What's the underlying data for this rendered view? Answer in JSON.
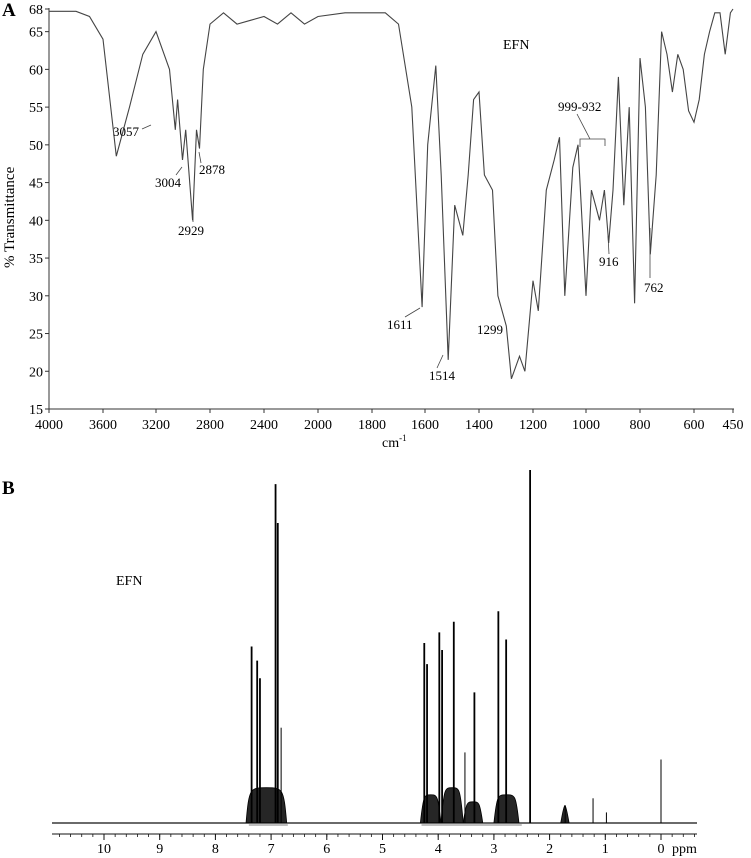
{
  "panels": {
    "a_label": "A",
    "b_label": "B"
  },
  "chart_data": [
    {
      "type": "line",
      "panel": "A",
      "title": "EFN",
      "xlabel": "cm-1",
      "ylabel": "% Transmittance",
      "xlim": [
        4000,
        450
      ],
      "ylim": [
        15,
        68
      ],
      "grid": false,
      "x_ticks": [
        4000,
        3600,
        3200,
        2800,
        2400,
        2000,
        1800,
        1600,
        1400,
        1200,
        1000,
        800,
        600,
        450
      ],
      "y_ticks": [
        15,
        20,
        25,
        30,
        35,
        40,
        45,
        50,
        55,
        60,
        65,
        68
      ],
      "annotations": [
        {
          "label": "3057",
          "x": 3057,
          "y": 52
        },
        {
          "label": "3004",
          "x": 3004,
          "y": 48
        },
        {
          "label": "2929",
          "x": 2929,
          "y": 40
        },
        {
          "label": "2878",
          "x": 2878,
          "y": 49.5
        },
        {
          "label": "1611",
          "x": 1611,
          "y": 28.5
        },
        {
          "label": "1514",
          "x": 1514,
          "y": 21.5
        },
        {
          "label": "1299",
          "x": 1299,
          "y": 26
        },
        {
          "label": "999-932",
          "x": 965,
          "y": 51
        },
        {
          "label": "916",
          "x": 916,
          "y": 37
        },
        {
          "label": "762",
          "x": 762,
          "y": 35.5
        }
      ],
      "x": [
        4000,
        3800,
        3700,
        3600,
        3500,
        3400,
        3300,
        3200,
        3100,
        3057,
        3040,
        3004,
        2980,
        2929,
        2900,
        2878,
        2850,
        2800,
        2700,
        2600,
        2500,
        2400,
        2300,
        2200,
        2100,
        2000,
        1900,
        1800,
        1750,
        1700,
        1650,
        1611,
        1590,
        1560,
        1540,
        1514,
        1490,
        1460,
        1440,
        1420,
        1400,
        1380,
        1350,
        1330,
        1299,
        1280,
        1250,
        1230,
        1200,
        1180,
        1150,
        1120,
        1100,
        1080,
        1050,
        1030,
        1000,
        980,
        965,
        950,
        932,
        916,
        900,
        880,
        860,
        840,
        820,
        800,
        780,
        762,
        740,
        720,
        700,
        680,
        660,
        640,
        620,
        600,
        580,
        560,
        540,
        520,
        500,
        480,
        460,
        450
      ],
      "values": [
        67.7,
        67.7,
        67,
        64,
        48.5,
        55,
        62,
        65,
        60,
        52,
        56,
        48,
        52,
        40,
        52,
        49.5,
        60,
        66,
        67.5,
        66,
        66.5,
        67,
        66,
        67.5,
        66,
        67,
        67.5,
        67.5,
        67.5,
        66,
        55,
        28.5,
        50,
        60.5,
        46,
        21.5,
        42,
        38,
        46,
        56,
        57,
        46,
        44,
        30,
        26,
        19,
        22,
        20,
        32,
        28,
        44,
        48,
        51,
        30,
        47,
        50,
        30,
        44,
        42,
        40,
        44,
        37,
        44,
        59,
        42,
        55,
        29,
        61.5,
        55,
        35.5,
        46,
        65,
        62,
        57,
        62,
        60,
        54.5,
        53,
        56,
        62,
        65,
        67.5,
        67.5,
        62,
        67.5,
        68
      ]
    },
    {
      "type": "line",
      "panel": "B",
      "title": "EFN",
      "xlabel": "ppm",
      "ylabel": "",
      "xlim": [
        11,
        -0.6
      ],
      "x_ticks": [
        10,
        9,
        8,
        7,
        6,
        5,
        4,
        3,
        2,
        1,
        0
      ],
      "grid": false,
      "peaks": [
        {
          "ppm": 7.35,
          "rel_height": 0.5
        },
        {
          "ppm": 7.25,
          "rel_height": 0.46
        },
        {
          "ppm": 7.2,
          "rel_height": 0.41
        },
        {
          "ppm": 6.92,
          "rel_height": 0.96
        },
        {
          "ppm": 6.88,
          "rel_height": 0.85
        },
        {
          "ppm": 6.82,
          "rel_height": 0.27
        },
        {
          "ppm": 4.25,
          "rel_height": 0.51
        },
        {
          "ppm": 4.2,
          "rel_height": 0.45
        },
        {
          "ppm": 3.98,
          "rel_height": 0.54
        },
        {
          "ppm": 3.93,
          "rel_height": 0.49
        },
        {
          "ppm": 3.72,
          "rel_height": 0.57
        },
        {
          "ppm": 3.52,
          "rel_height": 0.2
        },
        {
          "ppm": 3.35,
          "rel_height": 0.37
        },
        {
          "ppm": 2.92,
          "rel_height": 0.6
        },
        {
          "ppm": 2.78,
          "rel_height": 0.52
        },
        {
          "ppm": 2.35,
          "rel_height": 1.0
        },
        {
          "ppm": 1.72,
          "rel_height": 0.05
        },
        {
          "ppm": 1.22,
          "rel_height": 0.07
        },
        {
          "ppm": 0.98,
          "rel_height": 0.03
        },
        {
          "ppm": 0.0,
          "rel_height": 0.18
        }
      ]
    }
  ],
  "labels": {
    "ir_title": "EFN",
    "ir_ylabel": "% Transmittance",
    "ir_xlabel_base": "cm",
    "ir_xlabel_sup": "-1",
    "nmr_title": "EFN",
    "nmr_unit": "ppm"
  }
}
